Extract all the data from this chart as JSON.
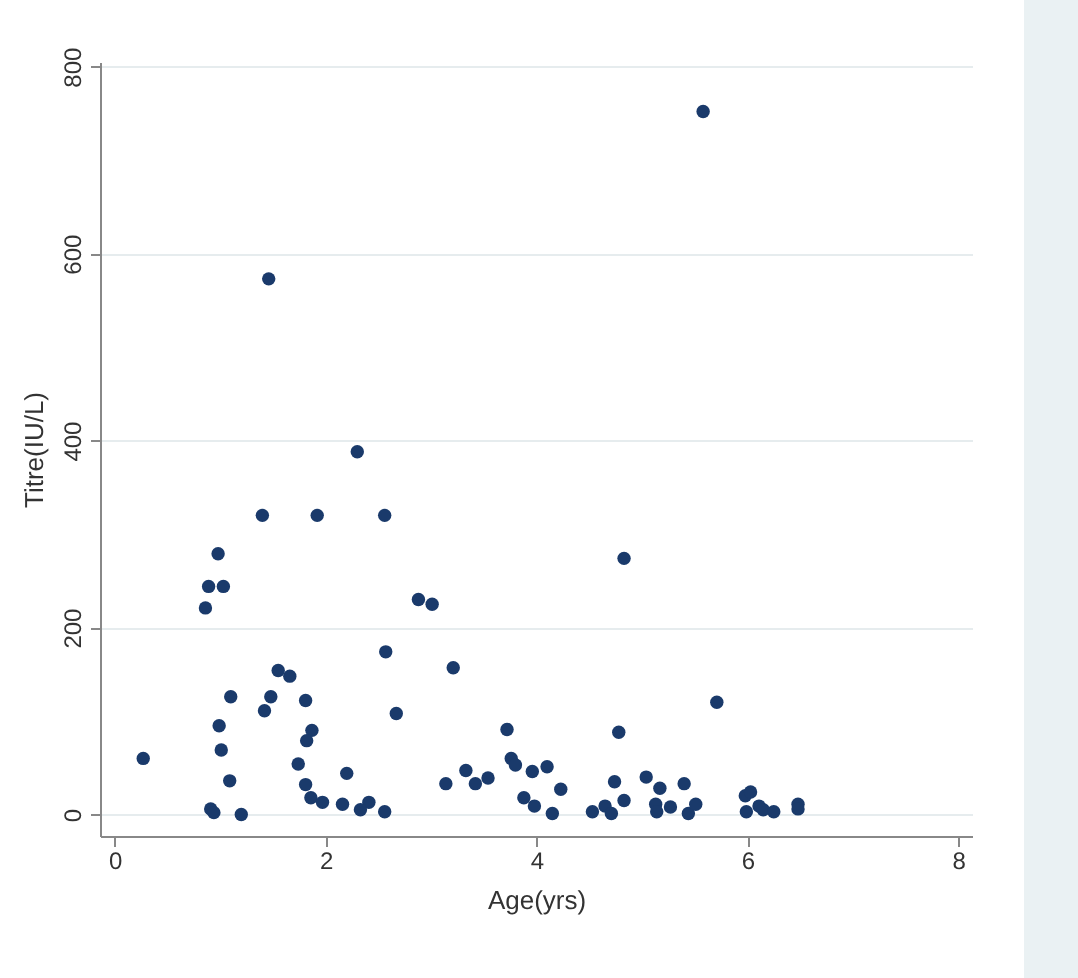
{
  "chart_data": {
    "type": "scatter",
    "xlabel": "Age(yrs)",
    "ylabel": "Titre(IU/L)",
    "xlim": [
      -0.14,
      8.13
    ],
    "ylim": [
      -23,
      805
    ],
    "xticks": [
      0,
      2,
      4,
      6,
      8
    ],
    "yticks": [
      0,
      200,
      400,
      600,
      800
    ],
    "grid": "y",
    "marker": "circle",
    "series": [
      {
        "color": "#1a3a6b",
        "x": [
          2.3,
          1.4,
          1.92,
          2.56,
          0.98,
          0.89,
          1.03,
          0.86,
          2.88,
          3.01,
          2.57,
          1.55,
          1.66,
          1.1,
          1.48,
          1.42,
          1.81,
          2.67,
          0.99,
          1.87,
          1.82,
          1.01,
          0.27,
          1.74,
          2.2,
          1.09,
          1.81,
          1.86,
          1.97,
          2.16,
          2.41,
          2.33,
          2.56,
          0.91,
          0.94,
          1.2,
          3.21,
          4.83,
          3.72,
          4.78,
          3.76,
          3.8,
          3.33,
          3.14,
          3.42,
          3.54,
          3.96,
          4.1,
          4.23,
          3.88,
          3.98,
          4.15,
          4.53,
          4.65,
          4.74,
          4.71,
          4.83,
          5.04,
          5.17,
          5.4,
          5.13,
          5.14,
          5.27,
          5.44,
          5.51,
          5.71,
          5.98,
          6.03,
          5.99,
          6.11,
          6.15,
          6.25,
          6.48,
          6.48,
          5.58,
          1.46
        ],
        "values": [
          388,
          320,
          320,
          320,
          279,
          244,
          244,
          221,
          230,
          225,
          174,
          154,
          148,
          126,
          126,
          111,
          122,
          108,
          95,
          90,
          79,
          69,
          60,
          54,
          44,
          36,
          32,
          18,
          13,
          11,
          13,
          5,
          3,
          6,
          2,
          0,
          157,
          274,
          91,
          88,
          60,
          53,
          47,
          33,
          33,
          39,
          46,
          51,
          27,
          18,
          9,
          1,
          3,
          9,
          35,
          1,
          15,
          40,
          28,
          33,
          11,
          3,
          8,
          1,
          11,
          120,
          20,
          24,
          3,
          9,
          5,
          3,
          11,
          6,
          752,
          573
        ]
      }
    ]
  }
}
